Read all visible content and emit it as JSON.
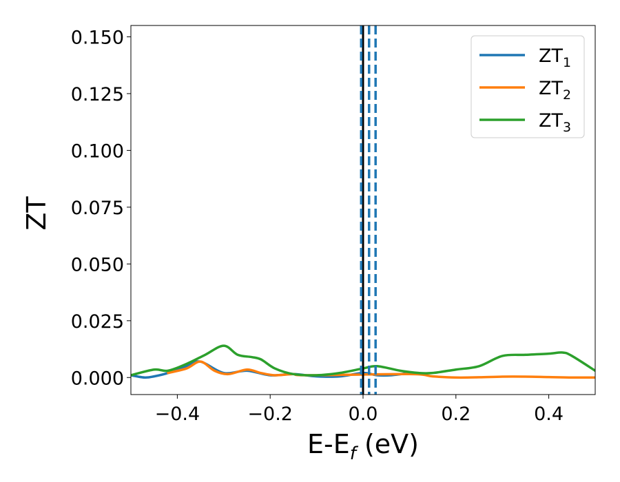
{
  "chart_data": {
    "type": "line",
    "xlabel": {
      "base": "E-E",
      "sub": "f",
      "suffix": " (eV)"
    },
    "ylabel": "ZT",
    "xlim": [
      -0.5,
      0.5
    ],
    "ylim": [
      -0.0075,
      0.155
    ],
    "xticks": [
      -0.4,
      -0.2,
      0.0,
      0.2,
      0.4
    ],
    "xtick_labels": [
      "−0.4",
      "−0.2",
      "0.0",
      "0.2",
      "0.4"
    ],
    "yticks": [
      0.0,
      0.025,
      0.05,
      0.075,
      0.1,
      0.125,
      0.15
    ],
    "ytick_labels": [
      "0.000",
      "0.025",
      "0.050",
      "0.075",
      "0.100",
      "0.125",
      "0.150"
    ],
    "grid": false,
    "legend_position": "top-right",
    "series": [
      {
        "name": "ZT",
        "name_sub": "1",
        "color": "#1f77b4",
        "x": [
          -0.5,
          -0.47,
          -0.45,
          -0.42,
          -0.38,
          -0.35,
          -0.3,
          -0.25,
          -0.2,
          -0.15,
          -0.1,
          -0.05,
          0.0,
          0.03,
          0.06,
          0.1
        ],
        "y": [
          0.001,
          0.0,
          0.0005,
          0.002,
          0.005,
          0.007,
          0.002,
          0.003,
          0.001,
          0.0015,
          0.0005,
          0.0005,
          0.002,
          0.001,
          0.001,
          0.002
        ]
      },
      {
        "name": "ZT",
        "name_sub": "2",
        "color": "#ff7f0e",
        "x": [
          -0.42,
          -0.38,
          -0.35,
          -0.32,
          -0.29,
          -0.25,
          -0.22,
          -0.19,
          -0.15,
          -0.12,
          0.1,
          0.15,
          0.2,
          0.25,
          0.3,
          0.35,
          0.4,
          0.45,
          0.5
        ],
        "y": [
          0.002,
          0.004,
          0.007,
          0.003,
          0.0015,
          0.0035,
          0.002,
          0.001,
          0.0015,
          0.001,
          0.0015,
          0.0005,
          0.0,
          0.0001,
          0.0004,
          0.0004,
          0.0002,
          0.0,
          0.0
        ]
      },
      {
        "name": "ZT",
        "name_sub": "3",
        "color": "#2ca02c",
        "x": [
          -0.5,
          -0.45,
          -0.42,
          -0.38,
          -0.34,
          -0.3,
          -0.27,
          -0.24,
          -0.22,
          -0.19,
          -0.15,
          -0.1,
          -0.05,
          0.0,
          0.03,
          0.08,
          0.12,
          0.15,
          0.2,
          0.25,
          0.3,
          0.35,
          0.4,
          0.43,
          0.45,
          0.5
        ],
        "y": [
          0.001,
          0.0035,
          0.003,
          0.006,
          0.01,
          0.014,
          0.01,
          0.009,
          0.008,
          0.004,
          0.0015,
          0.001,
          0.002,
          0.004,
          0.005,
          0.003,
          0.002,
          0.002,
          0.0035,
          0.005,
          0.0095,
          0.01,
          0.0105,
          0.011,
          0.0095,
          0.003
        ]
      }
    ],
    "vlines": [
      {
        "x": 0.0,
        "color": "#000000",
        "style": "solid"
      },
      {
        "x": -0.004,
        "color": "#1f77b4",
        "style": "dashed"
      },
      {
        "x": 0.013,
        "color": "#1f77b4",
        "style": "dashed"
      },
      {
        "x": 0.027,
        "color": "#1f77b4",
        "style": "dashed"
      }
    ]
  }
}
